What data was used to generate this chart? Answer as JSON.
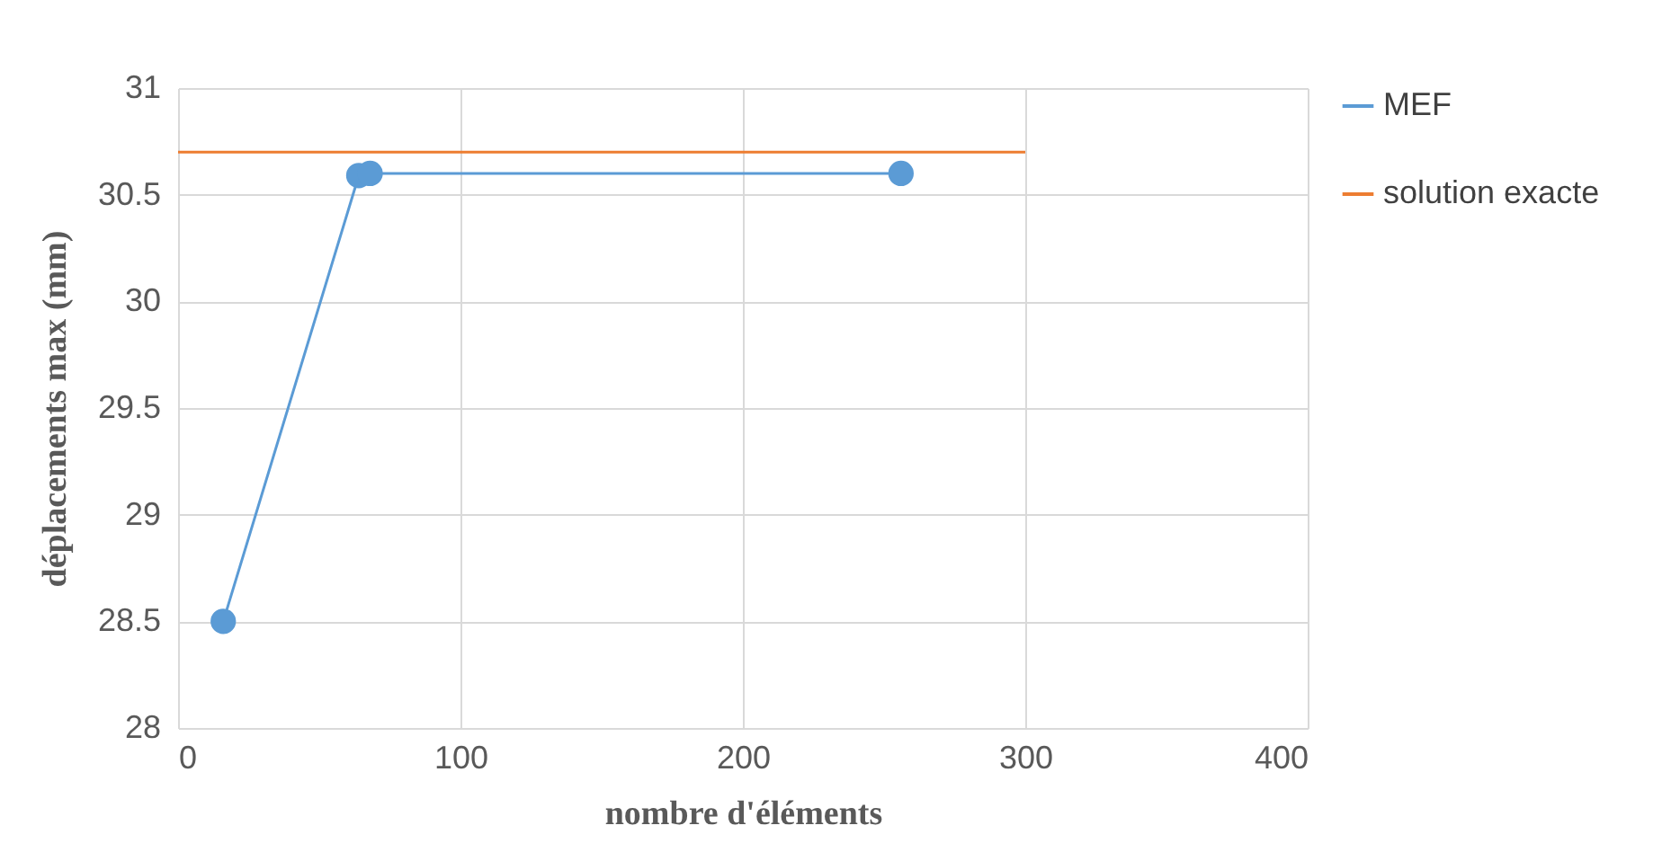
{
  "chart_data": {
    "type": "line",
    "xlabel": "nombre d'éléments",
    "ylabel": "déplacements max (mm)",
    "xlim": [
      0,
      400
    ],
    "xticks": [
      0,
      100,
      200,
      300,
      400
    ],
    "ylim": [
      28,
      31
    ],
    "yticks": [
      28,
      28.5,
      29,
      29.5,
      30,
      30.5,
      31
    ],
    "grid": true,
    "legend": "right",
    "series": [
      {
        "name": "MEF",
        "color": "#5b9bd5",
        "marker": "circle",
        "x": [
          16,
          64,
          68,
          256
        ],
        "values": [
          28.5,
          30.59,
          30.6,
          30.6
        ]
      },
      {
        "name": "solution exacte",
        "color": "#ed7d31",
        "marker": "none",
        "x": [
          0,
          300
        ],
        "values": [
          30.7,
          30.7
        ]
      }
    ]
  }
}
